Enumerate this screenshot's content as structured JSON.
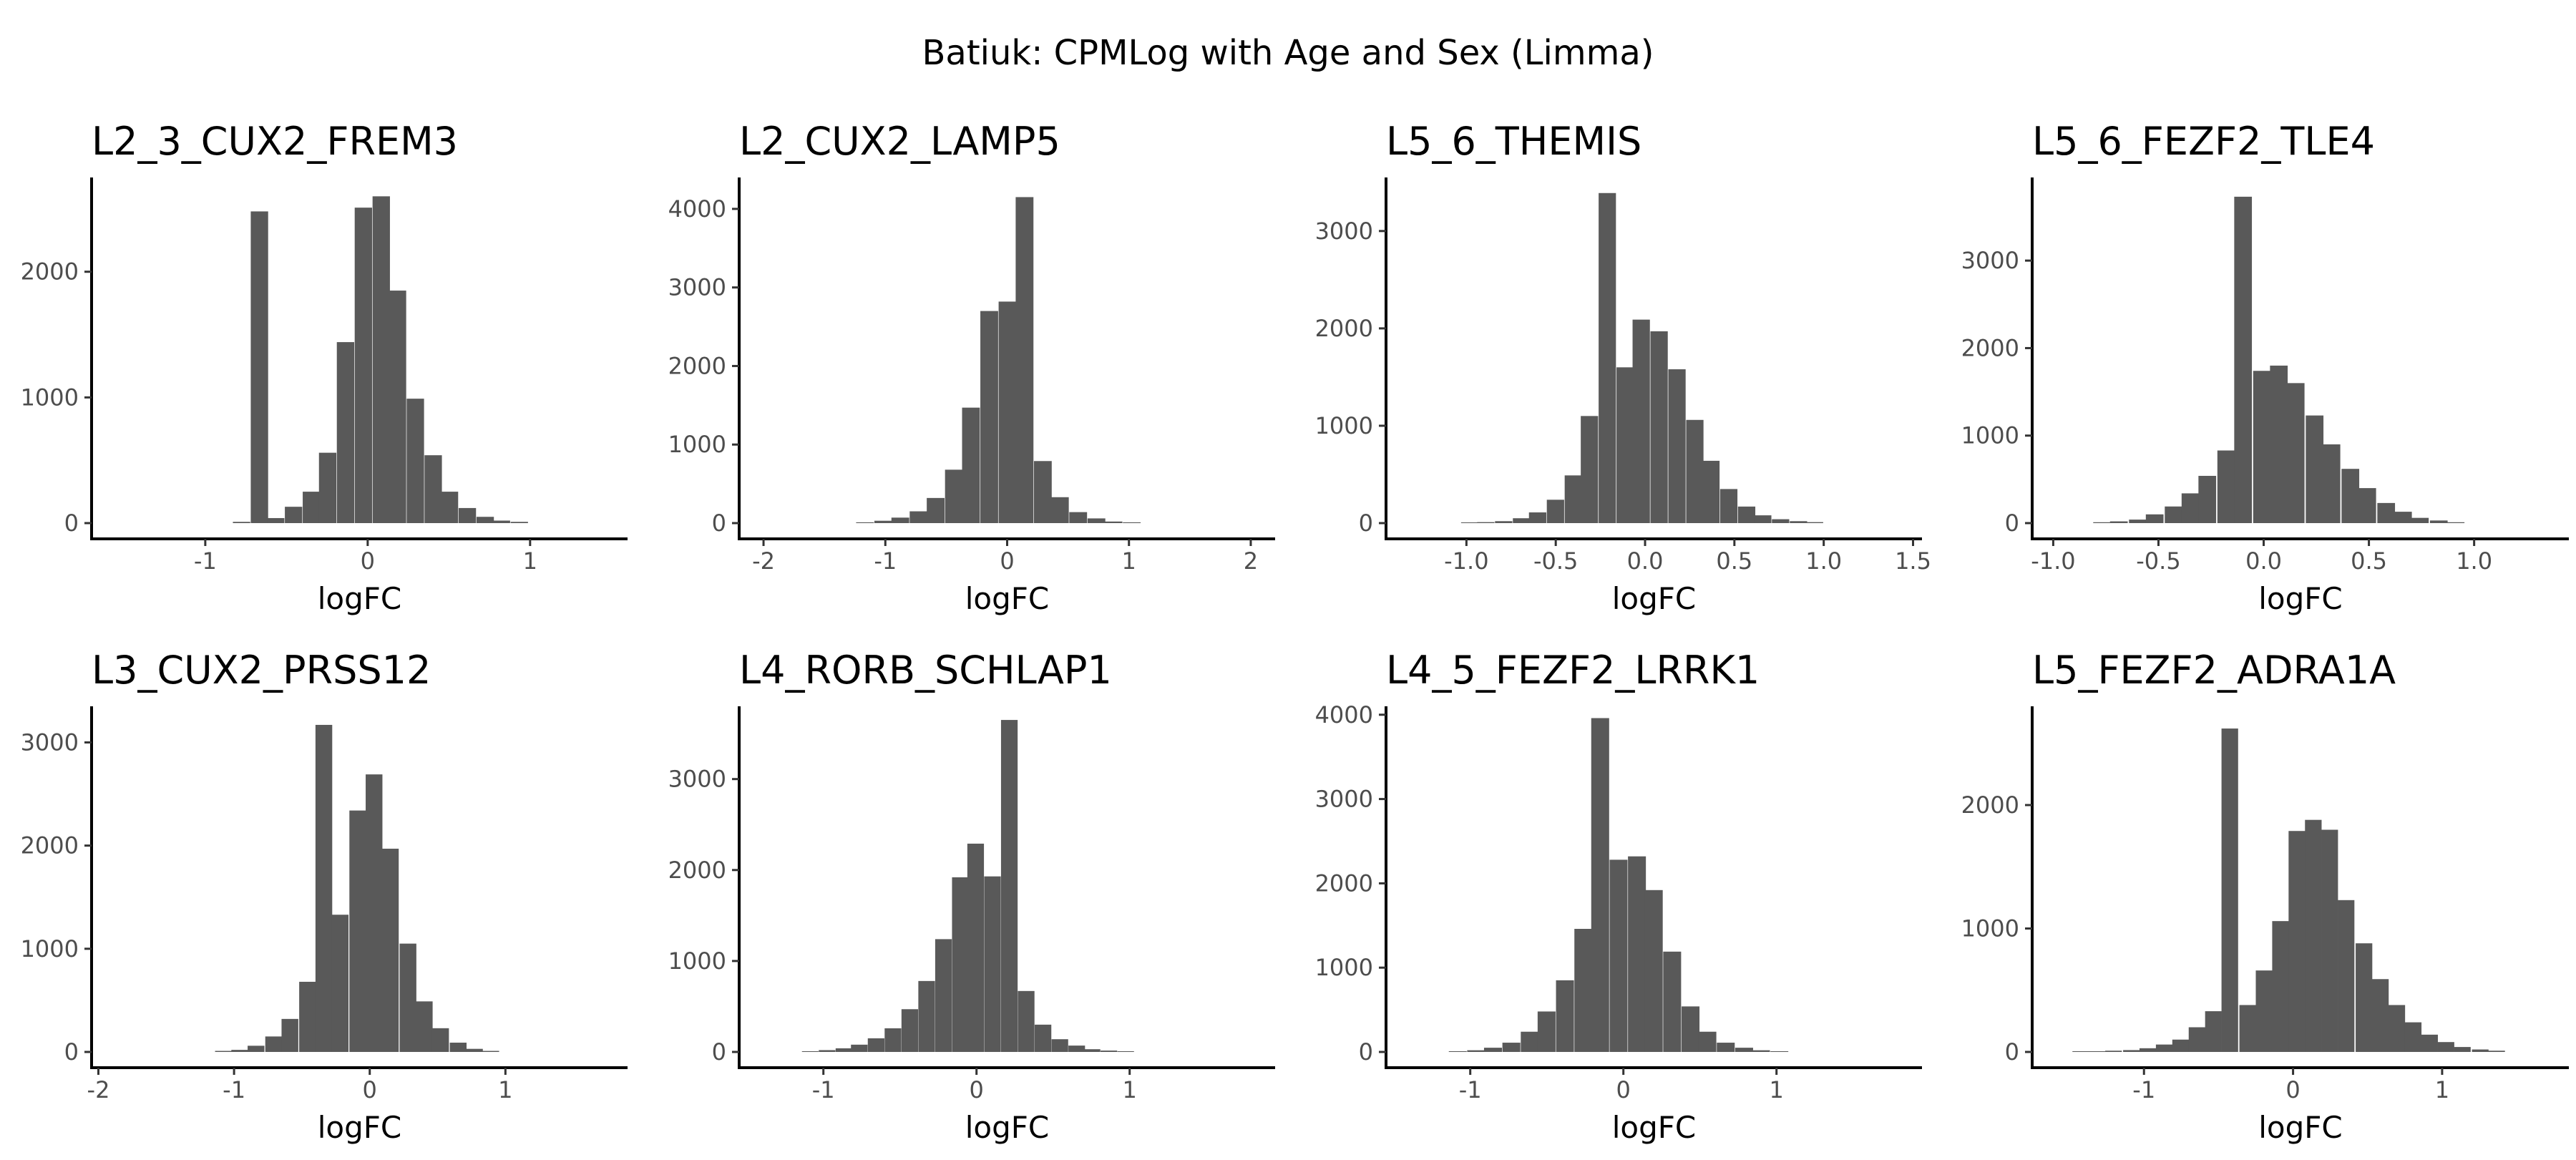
{
  "figure_title": "Batiuk: CPMLog with Age and Sex (Limma)",
  "colors": {
    "bar": "#595959",
    "axis": "#000000",
    "tick_text": "#4d4d4d"
  },
  "chart_data": [
    {
      "type": "bar",
      "title": "L2_3_CUX2_FREM3",
      "xlabel": "logFC",
      "ylabel": "",
      "xlim": [
        -1.7,
        1.6
      ],
      "ylim": [
        0,
        2750
      ],
      "bin_width": 0.107,
      "xticks": [
        -1,
        0,
        1
      ],
      "xtick_labels": [
        "-1",
        "0",
        "1"
      ],
      "yticks": [
        0,
        1000,
        2000
      ],
      "ytick_labels": [
        "0",
        "1000",
        "2000"
      ],
      "bin_starts": [
        -0.83,
        -0.72,
        -0.62,
        -0.51,
        -0.4,
        -0.3,
        -0.19,
        -0.08,
        0.03,
        0.13,
        0.24,
        0.35,
        0.45,
        0.56,
        0.67,
        0.77,
        0.88
      ],
      "counts": [
        10,
        2480,
        40,
        130,
        250,
        560,
        1440,
        2510,
        2600,
        1850,
        990,
        540,
        250,
        120,
        50,
        20,
        10
      ]
    },
    {
      "type": "bar",
      "title": "L2_CUX2_LAMP5",
      "xlabel": "logFC",
      "ylabel": "",
      "xlim": [
        -2.2,
        2.2
      ],
      "ylim": [
        0,
        4400
      ],
      "bin_width": 0.146,
      "xticks": [
        -2,
        -1,
        0,
        1,
        2
      ],
      "xtick_labels": [
        "-2",
        "-1",
        "0",
        "1",
        "2"
      ],
      "yticks": [
        0,
        1000,
        2000,
        3000,
        4000
      ],
      "ytick_labels": [
        "0",
        "1000",
        "2000",
        "3000",
        "4000"
      ],
      "bin_starts": [
        -1.24,
        -1.09,
        -0.95,
        -0.8,
        -0.66,
        -0.51,
        -0.37,
        -0.22,
        -0.07,
        0.07,
        0.22,
        0.36,
        0.51,
        0.66,
        0.8,
        0.95
      ],
      "counts": [
        10,
        30,
        70,
        150,
        320,
        680,
        1470,
        2700,
        2820,
        4150,
        790,
        330,
        140,
        60,
        20,
        10
      ]
    },
    {
      "type": "bar",
      "title": "L5_6_THEMIS",
      "xlabel": "logFC",
      "ylabel": "",
      "xlim": [
        -1.45,
        1.55
      ],
      "ylim": [
        0,
        3550
      ],
      "bin_width": 0.097,
      "xticks": [
        -1.0,
        -0.5,
        0.0,
        0.5,
        1.0,
        1.5
      ],
      "xtick_labels": [
        "-1.0",
        "-0.5",
        "0.0",
        "0.5",
        "1.0",
        "1.5"
      ],
      "yticks": [
        0,
        1000,
        2000,
        3000
      ],
      "ytick_labels": [
        "0",
        "1000",
        "2000",
        "3000"
      ],
      "bin_starts": [
        -1.03,
        -0.94,
        -0.84,
        -0.74,
        -0.65,
        -0.55,
        -0.45,
        -0.36,
        -0.26,
        -0.16,
        -0.07,
        0.03,
        0.13,
        0.23,
        0.32,
        0.42,
        0.52,
        0.61,
        0.71,
        0.81,
        0.9
      ],
      "counts": [
        5,
        10,
        20,
        50,
        110,
        240,
        490,
        1100,
        3390,
        1600,
        2090,
        1970,
        1580,
        1060,
        640,
        350,
        170,
        80,
        40,
        20,
        10
      ]
    },
    {
      "type": "bar",
      "title": "L5_6_FEZF2_TLE4",
      "xlabel": "logFC",
      "ylabel": "",
      "xlim": [
        -1.1,
        1.45
      ],
      "ylim": [
        0,
        3950
      ],
      "bin_width": 0.084,
      "xticks": [
        -1.0,
        -0.5,
        0.0,
        0.5,
        1.0
      ],
      "xtick_labels": [
        "-1.0",
        "-0.5",
        "0.0",
        "0.5",
        "1.0"
      ],
      "yticks": [
        0,
        1000,
        2000,
        3000
      ],
      "ytick_labels": [
        "0",
        "1000",
        "2000",
        "3000"
      ],
      "bin_starts": [
        -0.81,
        -0.73,
        -0.64,
        -0.56,
        -0.47,
        -0.39,
        -0.31,
        -0.22,
        -0.14,
        -0.05,
        0.03,
        0.11,
        0.2,
        0.28,
        0.37,
        0.45,
        0.54,
        0.62,
        0.7,
        0.79,
        0.87
      ],
      "counts": [
        10,
        20,
        40,
        100,
        190,
        340,
        540,
        830,
        3730,
        1740,
        1800,
        1600,
        1230,
        900,
        620,
        400,
        230,
        130,
        60,
        30,
        10
      ]
    },
    {
      "type": "bar",
      "title": "L3_CUX2_PRSS12",
      "xlabel": "logFC",
      "ylabel": "",
      "xlim": [
        -2.05,
        1.9
      ],
      "ylim": [
        0,
        3350
      ],
      "bin_width": 0.1235,
      "xticks": [
        -2,
        -1,
        0,
        1
      ],
      "xtick_labels": [
        "-2",
        "-1",
        "0",
        "1"
      ],
      "yticks": [
        0,
        1000,
        2000,
        3000
      ],
      "ytick_labels": [
        "0",
        "1000",
        "2000",
        "3000"
      ],
      "bin_starts": [
        -1.14,
        -1.02,
        -0.9,
        -0.77,
        -0.65,
        -0.52,
        -0.4,
        -0.28,
        -0.15,
        -0.03,
        0.09,
        0.22,
        0.34,
        0.46,
        0.59,
        0.71,
        0.83
      ],
      "counts": [
        10,
        20,
        60,
        150,
        320,
        680,
        3170,
        1330,
        2340,
        2690,
        1970,
        1050,
        490,
        230,
        90,
        30,
        10
      ]
    },
    {
      "type": "bar",
      "title": "L4_RORB_SCHLAP1",
      "xlabel": "logFC",
      "ylabel": "",
      "xlim": [
        -1.55,
        1.95
      ],
      "ylim": [
        0,
        3800
      ],
      "bin_width": 0.1085,
      "xticks": [
        -1,
        0,
        1
      ],
      "xtick_labels": [
        "-1",
        "0",
        "1"
      ],
      "yticks": [
        0,
        1000,
        2000,
        3000
      ],
      "ytick_labels": [
        "0",
        "1000",
        "2000",
        "3000"
      ],
      "bin_starts": [
        -1.14,
        -1.03,
        -0.92,
        -0.82,
        -0.71,
        -0.6,
        -0.49,
        -0.38,
        -0.27,
        -0.16,
        -0.06,
        0.05,
        0.16,
        0.27,
        0.38,
        0.49,
        0.6,
        0.7,
        0.81,
        0.92
      ],
      "counts": [
        5,
        20,
        40,
        80,
        150,
        260,
        470,
        780,
        1240,
        1920,
        2290,
        1930,
        3650,
        670,
        300,
        140,
        70,
        30,
        15,
        5
      ]
    },
    {
      "type": "bar",
      "title": "L4_5_FEZF2_LRRK1",
      "xlabel": "logFC",
      "ylabel": "",
      "xlim": [
        -1.55,
        1.95
      ],
      "ylim": [
        0,
        4100
      ],
      "bin_width": 0.117,
      "xticks": [
        -1,
        0,
        1
      ],
      "xtick_labels": [
        "-1",
        "0",
        "1"
      ],
      "yticks": [
        0,
        1000,
        2000,
        3000,
        4000
      ],
      "ytick_labels": [
        "0",
        "1000",
        "2000",
        "3000",
        "4000"
      ],
      "bin_starts": [
        -1.14,
        -1.02,
        -0.91,
        -0.79,
        -0.67,
        -0.56,
        -0.44,
        -0.32,
        -0.21,
        -0.09,
        0.03,
        0.14,
        0.26,
        0.38,
        0.49,
        0.61,
        0.73,
        0.84,
        0.96
      ],
      "counts": [
        5,
        20,
        50,
        110,
        240,
        480,
        850,
        1460,
        3960,
        2280,
        2320,
        1920,
        1190,
        540,
        240,
        110,
        50,
        20,
        5
      ]
    },
    {
      "type": "bar",
      "title": "L5_FEZF2_ADRA1A",
      "xlabel": "logFC",
      "ylabel": "",
      "xlim": [
        -1.75,
        1.85
      ],
      "ylim": [
        0,
        2800
      ],
      "bin_width": 0.1115,
      "xticks": [
        -1,
        0,
        1
      ],
      "xtick_labels": [
        "-1",
        "0",
        "1"
      ],
      "yticks": [
        0,
        1000,
        2000
      ],
      "ytick_labels": [
        "0",
        "1000",
        "2000"
      ],
      "bin_starts": [
        -1.48,
        -1.37,
        -1.26,
        -1.14,
        -1.03,
        -0.92,
        -0.81,
        -0.7,
        -0.59,
        -0.48,
        -0.36,
        -0.25,
        -0.14,
        -0.03,
        0.08,
        0.19,
        0.3,
        0.42,
        0.53,
        0.64,
        0.75,
        0.86,
        0.97,
        1.08,
        1.2,
        1.31
      ],
      "counts": [
        5,
        5,
        10,
        15,
        30,
        60,
        100,
        200,
        330,
        2620,
        380,
        660,
        1060,
        1790,
        1880,
        1800,
        1230,
        880,
        590,
        380,
        240,
        140,
        80,
        40,
        20,
        10
      ]
    }
  ]
}
